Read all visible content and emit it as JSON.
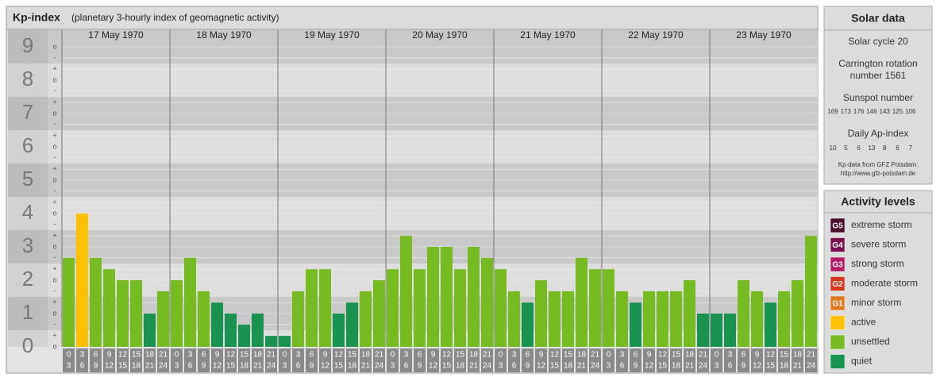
{
  "chart_data": {
    "type": "bar",
    "title": "Kp-index",
    "subtitle": "(planetary 3-hourly index of geomagnetic activity)",
    "days": [
      "17 May 1970",
      "18 May 1970",
      "19 May 1970",
      "20 May 1970",
      "21 May 1970",
      "22 May 1970",
      "23 May 1970"
    ],
    "hour_starts": [
      0,
      3,
      6,
      9,
      12,
      15,
      18,
      21
    ],
    "hour_ends": [
      3,
      6,
      9,
      12,
      15,
      18,
      21,
      24
    ],
    "values": [
      2.67,
      4,
      2.67,
      2.33,
      2,
      2,
      1,
      1.67,
      2,
      2.67,
      1.67,
      1.33,
      1,
      0.67,
      1,
      0.33,
      0.33,
      1.67,
      2.33,
      2.33,
      1,
      1.33,
      1.67,
      2,
      2.33,
      3.33,
      2.33,
      3,
      3,
      2.33,
      3,
      2.67,
      2.33,
      1.67,
      1.33,
      2,
      1.67,
      1.67,
      2.67,
      2.33,
      2.33,
      1.67,
      1.33,
      1.67,
      1.67,
      1.67,
      2,
      1,
      1,
      1,
      2,
      1.67,
      1.33,
      1.67,
      2,
      3.33
    ],
    "colors": [
      "#77bb22",
      "#ffc000",
      "#77bb22",
      "#77bb22",
      "#77bb22",
      "#77bb22",
      "#1a9350",
      "#77bb22",
      "#77bb22",
      "#77bb22",
      "#77bb22",
      "#1a9350",
      "#1a9350",
      "#1a9350",
      "#1a9350",
      "#1a9350",
      "#1a9350",
      "#77bb22",
      "#77bb22",
      "#77bb22",
      "#1a9350",
      "#1a9350",
      "#77bb22",
      "#77bb22",
      "#77bb22",
      "#77bb22",
      "#77bb22",
      "#77bb22",
      "#77bb22",
      "#77bb22",
      "#77bb22",
      "#77bb22",
      "#77bb22",
      "#77bb22",
      "#1a9350",
      "#77bb22",
      "#77bb22",
      "#77bb22",
      "#77bb22",
      "#77bb22",
      "#77bb22",
      "#77bb22",
      "#1a9350",
      "#77bb22",
      "#77bb22",
      "#77bb22",
      "#77bb22",
      "#1a9350",
      "#1a9350",
      "#1a9350",
      "#77bb22",
      "#77bb22",
      "#1a9350",
      "#77bb22",
      "#77bb22",
      "#77bb22"
    ],
    "ylim": [
      0,
      9.5
    ],
    "yticks": [
      0,
      1,
      2,
      3,
      4,
      5,
      6,
      7,
      8,
      9
    ],
    "yminorticks": [
      {
        "value": 0,
        "label": "o"
      },
      {
        "value": 0.33,
        "label": "+"
      },
      {
        "value": 0.67,
        "label": "-"
      },
      {
        "value": 1,
        "label": "o"
      },
      {
        "value": 1.33,
        "label": "+"
      },
      {
        "value": 1.67,
        "label": "-"
      },
      {
        "value": 2,
        "label": "o"
      },
      {
        "value": 2.33,
        "label": "+"
      },
      {
        "value": 2.67,
        "label": "-"
      },
      {
        "value": 3,
        "label": "o"
      },
      {
        "value": 3.33,
        "label": "+"
      },
      {
        "value": 3.67,
        "label": "-"
      },
      {
        "value": 4,
        "label": "o"
      },
      {
        "value": 4.33,
        "label": "+"
      },
      {
        "value": 4.67,
        "label": "-"
      },
      {
        "value": 5,
        "label": "o"
      },
      {
        "value": 5.33,
        "label": "+"
      },
      {
        "value": 5.67,
        "label": "-"
      },
      {
        "value": 6,
        "label": "o"
      },
      {
        "value": 6.33,
        "label": "+"
      },
      {
        "value": 6.67,
        "label": "-"
      },
      {
        "value": 7,
        "label": "o"
      },
      {
        "value": 7.33,
        "label": "+"
      },
      {
        "value": 7.67,
        "label": "-"
      },
      {
        "value": 8,
        "label": "o"
      },
      {
        "value": 8.33,
        "label": "+"
      },
      {
        "value": 8.67,
        "label": "-"
      },
      {
        "value": 9,
        "label": "o"
      }
    ],
    "grid": true
  },
  "solar_data": {
    "title": "Solar data",
    "cycle": "Solar cycle 20",
    "carrington": [
      "Carrington rotation",
      "number 1561"
    ],
    "sunspot_title": "Sunspot number",
    "sunspot_numbers": [
      169,
      173,
      176,
      146,
      143,
      125,
      106
    ],
    "ap_title": "Daily Ap-index",
    "ap_values": [
      10,
      5,
      6,
      13,
      8,
      6,
      7
    ],
    "source": "Kp-data from GFZ Potsdam:",
    "url": "http://www.gfz-potsdam.de"
  },
  "activity_levels": {
    "title": "Activity levels",
    "items": [
      {
        "code": "G5",
        "name": "extreme storm",
        "color": "#4d0a2e"
      },
      {
        "code": "G4",
        "name": "severe storm",
        "color": "#7a1050"
      },
      {
        "code": "G3",
        "name": "strong storm",
        "color": "#b31a66"
      },
      {
        "code": "G2",
        "name": "moderate storm",
        "color": "#d8371f"
      },
      {
        "code": "G1",
        "name": "minor storm",
        "color": "#e07a1f"
      },
      {
        "name": "active",
        "color": "#ffc000"
      },
      {
        "name": "unsettled",
        "color": "#77bb22"
      },
      {
        "name": "quiet",
        "color": "#1a9350"
      }
    ]
  }
}
